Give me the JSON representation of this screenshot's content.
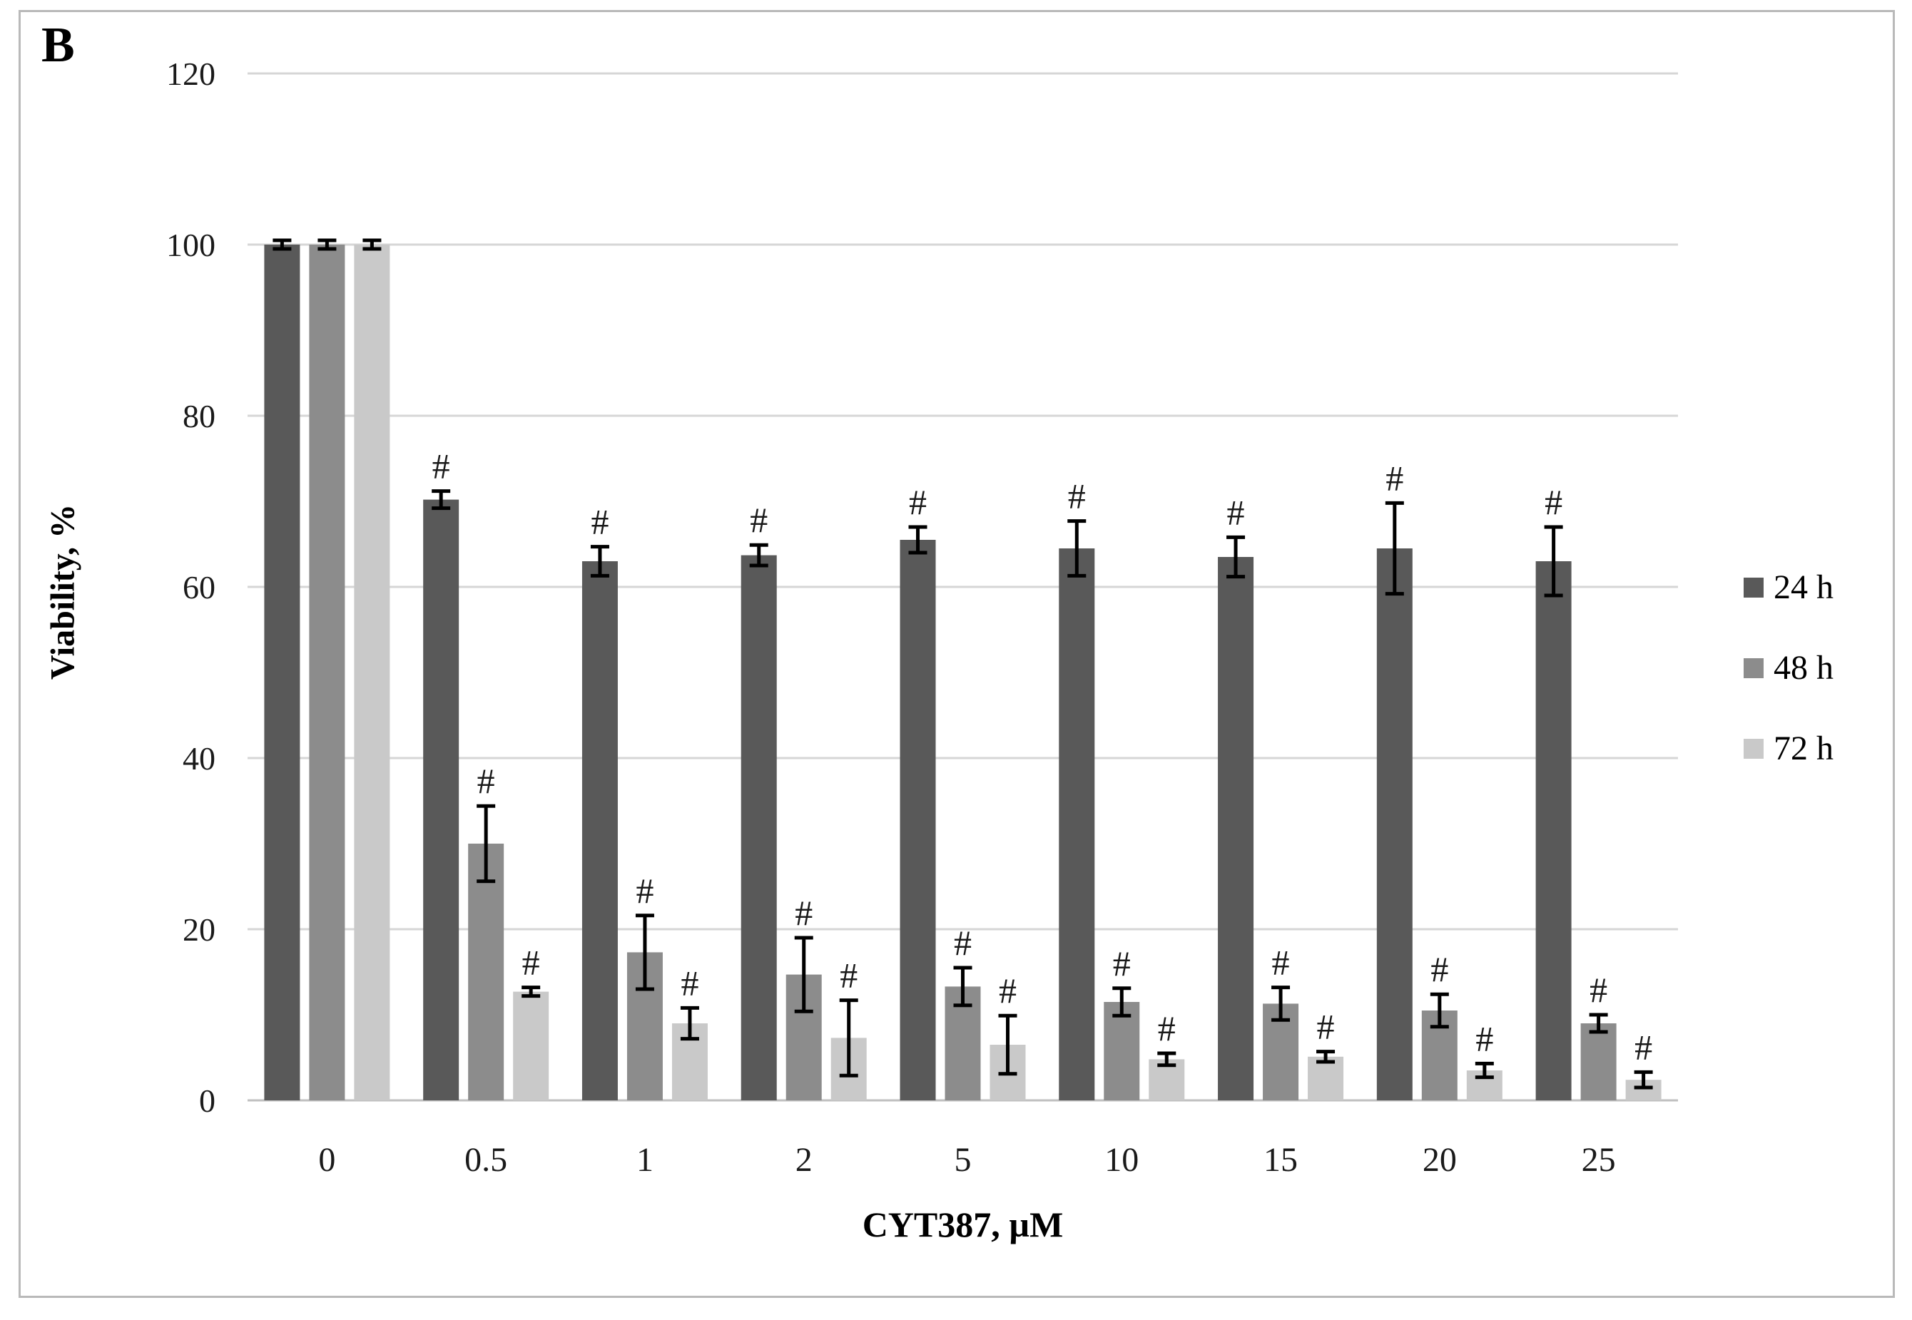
{
  "figure": {
    "panel_label": "B"
  },
  "chart_data": {
    "type": "bar",
    "title": "",
    "xlabel": "CYT387, µM",
    "ylabel": "Viability, %",
    "categories": [
      "0",
      "0.5",
      "1",
      "2",
      "5",
      "10",
      "15",
      "20",
      "25"
    ],
    "y_ticks": [
      0,
      20,
      40,
      60,
      80,
      100,
      120
    ],
    "ylim": [
      0,
      120
    ],
    "grid": true,
    "legend_position": "right",
    "significance_marker": "#",
    "colors": {
      "gridline": "#d6d6d6",
      "baseline": "#bfbfbf",
      "error_bar": "#000000"
    },
    "series": [
      {
        "name": "24 h",
        "color": "#595959",
        "values": [
          100,
          70.2,
          63.0,
          63.7,
          65.5,
          64.5,
          63.5,
          64.5,
          63.0
        ],
        "errors": [
          0.5,
          1.0,
          1.7,
          1.2,
          1.5,
          3.2,
          2.3,
          5.3,
          4.0
        ],
        "significant": [
          false,
          true,
          true,
          true,
          true,
          true,
          true,
          true,
          true
        ]
      },
      {
        "name": "48 h",
        "color": "#8c8c8c",
        "values": [
          100,
          30.0,
          17.3,
          14.7,
          13.3,
          11.5,
          11.3,
          10.5,
          9.0
        ],
        "errors": [
          0.5,
          4.4,
          4.3,
          4.3,
          2.2,
          1.6,
          1.9,
          1.9,
          1.0
        ],
        "significant": [
          false,
          true,
          true,
          true,
          true,
          true,
          true,
          true,
          true
        ]
      },
      {
        "name": "72 h",
        "color": "#c9c9c9",
        "values": [
          100,
          12.7,
          9.0,
          7.3,
          6.5,
          4.8,
          5.1,
          3.5,
          2.4
        ],
        "errors": [
          0.5,
          0.5,
          1.8,
          4.4,
          3.4,
          0.7,
          0.6,
          0.8,
          0.9
        ],
        "significant": [
          false,
          true,
          true,
          true,
          true,
          true,
          true,
          true,
          true
        ]
      }
    ]
  }
}
